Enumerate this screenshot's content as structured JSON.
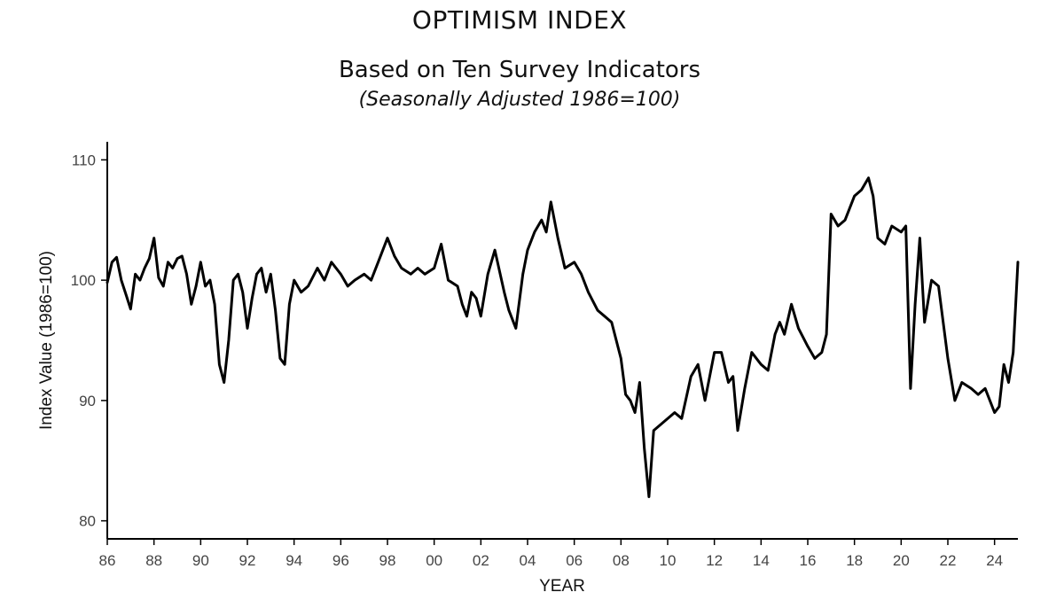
{
  "chart_data": {
    "type": "line",
    "title": "OPTIMISM INDEX",
    "subtitle": "Based on Ten Survey Indicators",
    "note": "(Seasonally Adjusted 1986=100)",
    "xlabel": "YEAR",
    "ylabel": "Index Value (1986=100)",
    "xlim": [
      1986,
      2025
    ],
    "ylim": [
      78.5,
      111.5
    ],
    "x_ticks": [
      1986,
      1988,
      1990,
      1992,
      1994,
      1996,
      1998,
      2000,
      2002,
      2004,
      2006,
      2008,
      2010,
      2012,
      2014,
      2016,
      2018,
      2020,
      2022,
      2024
    ],
    "x_tick_labels": [
      "86",
      "88",
      "90",
      "92",
      "94",
      "96",
      "98",
      "00",
      "02",
      "04",
      "06",
      "08",
      "10",
      "12",
      "14",
      "16",
      "18",
      "20",
      "22",
      "24"
    ],
    "y_ticks": [
      80,
      90,
      100,
      110
    ],
    "y_tick_labels": [
      "80",
      "90",
      "100",
      "110"
    ],
    "grid": false,
    "line_color": "#000000",
    "series": [
      {
        "x": [
          1986.0,
          1986.2,
          1986.4,
          1986.6,
          1986.8,
          1987.0,
          1987.2,
          1987.4,
          1987.6,
          1987.8,
          1988.0,
          1988.2,
          1988.4,
          1988.6,
          1988.8,
          1989.0,
          1989.2,
          1989.4,
          1989.6,
          1989.8,
          1990.0,
          1990.2,
          1990.4,
          1990.6,
          1990.8,
          1991.0,
          1991.2,
          1991.4,
          1991.6,
          1991.8,
          1992.0,
          1992.2,
          1992.4,
          1992.6,
          1992.8,
          1993.0,
          1993.2,
          1993.4,
          1993.6,
          1993.8,
          1994.0,
          1994.3,
          1994.6,
          1995.0,
          1995.3,
          1995.6,
          1996.0,
          1996.3,
          1996.6,
          1997.0,
          1997.3,
          1997.6,
          1998.0,
          1998.3,
          1998.6,
          1999.0,
          1999.3,
          1999.6,
          2000.0,
          2000.3,
          2000.6,
          2001.0,
          2001.2,
          2001.4,
          2001.6,
          2001.8,
          2002.0,
          2002.3,
          2002.6,
          2003.0,
          2003.2,
          2003.5,
          2003.8,
          2004.0,
          2004.3,
          2004.6,
          2004.8,
          2005.0,
          2005.3,
          2005.6,
          2006.0,
          2006.3,
          2006.6,
          2007.0,
          2007.3,
          2007.6,
          2008.0,
          2008.2,
          2008.4,
          2008.6,
          2008.8,
          2009.0,
          2009.2,
          2009.4,
          2009.7,
          2010.0,
          2010.3,
          2010.6,
          2011.0,
          2011.3,
          2011.6,
          2012.0,
          2012.3,
          2012.6,
          2012.8,
          2013.0,
          2013.3,
          2013.6,
          2014.0,
          2014.3,
          2014.6,
          2014.8,
          2015.0,
          2015.3,
          2015.6,
          2016.0,
          2016.3,
          2016.6,
          2016.8,
          2017.0,
          2017.3,
          2017.6,
          2018.0,
          2018.3,
          2018.6,
          2018.8,
          2019.0,
          2019.3,
          2019.6,
          2020.0,
          2020.2,
          2020.4,
          2020.6,
          2020.8,
          2021.0,
          2021.3,
          2021.6,
          2022.0,
          2022.3,
          2022.6,
          2023.0,
          2023.3,
          2023.6,
          2024.0,
          2024.2,
          2024.4,
          2024.6,
          2024.8,
          2025.0
        ],
        "y": [
          99.8,
          101.5,
          101.9,
          100.0,
          98.8,
          97.6,
          100.5,
          100.0,
          101.0,
          101.8,
          103.5,
          100.2,
          99.5,
          101.5,
          101.0,
          101.8,
          102.0,
          100.5,
          98.0,
          99.5,
          101.5,
          99.5,
          100.0,
          98.0,
          93.0,
          91.5,
          95.0,
          100.0,
          100.5,
          99.0,
          96.0,
          98.5,
          100.5,
          101.0,
          99.0,
          100.5,
          97.5,
          93.5,
          93.0,
          98.0,
          100.0,
          99.0,
          99.5,
          101.0,
          100.0,
          101.5,
          100.5,
          99.5,
          100.0,
          100.5,
          100.0,
          101.5,
          103.5,
          102.0,
          101.0,
          100.5,
          101.0,
          100.5,
          101.0,
          103.0,
          100.0,
          99.5,
          98.0,
          97.0,
          99.0,
          98.5,
          97.0,
          100.5,
          102.5,
          99.0,
          97.5,
          96.0,
          100.5,
          102.5,
          104.0,
          105.0,
          104.0,
          106.5,
          103.5,
          101.0,
          101.5,
          100.5,
          99.0,
          97.5,
          97.0,
          96.5,
          93.5,
          90.5,
          90.0,
          89.0,
          91.5,
          86.0,
          82.0,
          87.5,
          88.0,
          88.5,
          89.0,
          88.5,
          92.0,
          93.0,
          90.0,
          94.0,
          94.0,
          91.5,
          92.0,
          87.5,
          91.0,
          94.0,
          93.0,
          92.5,
          95.5,
          96.5,
          95.5,
          98.0,
          96.0,
          94.5,
          93.5,
          94.0,
          95.5,
          105.5,
          104.5,
          105.0,
          107.0,
          107.5,
          108.5,
          107.0,
          103.5,
          103.0,
          104.5,
          104.0,
          104.5,
          91.0,
          98.0,
          103.5,
          96.5,
          100.0,
          99.5,
          93.5,
          90.0,
          91.5,
          91.0,
          90.5,
          91.0,
          89.0,
          89.5,
          93.0,
          91.5,
          94.0,
          101.5
        ]
      }
    ]
  }
}
